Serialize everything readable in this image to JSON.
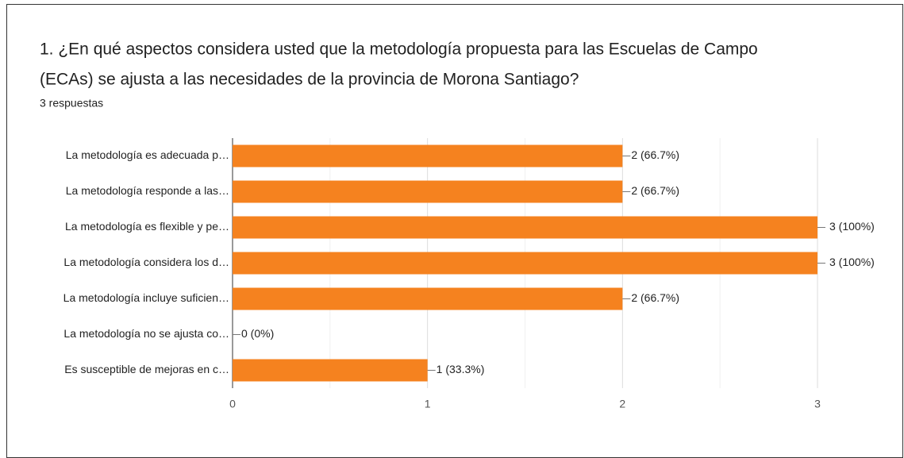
{
  "chart_data": {
    "type": "barh",
    "title_lines": [
      "1.  ¿En qué aspectos considera usted que la metodología propuesta para las Escuelas de Campo",
      "(ECAs) se ajusta a las necesidades de la provincia de Morona Santiago?"
    ],
    "subtitle": "3 respuestas",
    "categories": [
      "La metodología es adecuada p…",
      "La metodología responde a las…",
      "La metodología es flexible y pe…",
      "La metodología considera los d…",
      "La metodología incluye suficien…",
      "La metodología no se ajusta co…",
      "Es susceptible de mejoras en c…"
    ],
    "values": [
      2,
      2,
      3,
      3,
      2,
      0,
      1
    ],
    "value_labels": [
      "2 (66.7%)",
      "2 (66.7%)",
      "3 (100%)",
      "3 (100%)",
      "2 (66.7%)",
      "0 (0%)",
      "1 (33.3%)"
    ],
    "color": "#f5821f",
    "xlim": [
      0,
      3
    ],
    "xticks": [
      0,
      1,
      2,
      3
    ],
    "xminorticks": [
      0.5,
      1.5,
      2.5
    ],
    "grid": true
  }
}
